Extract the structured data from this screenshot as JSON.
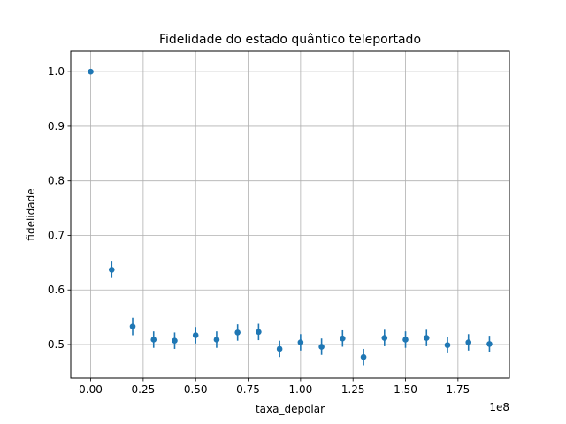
{
  "chart_data": {
    "type": "scatter",
    "title": "Fidelidade do estado quântico teleportado",
    "xlabel": "taxa_depolar",
    "ylabel": "fidelidade",
    "x_offset_label": "1e8",
    "xlim": [
      -0.095,
      1.995
    ],
    "ylim": [
      0.4385,
      1.0375
    ],
    "grid": true,
    "marker_color": "#1f77b4",
    "x_ticks": [
      0.0,
      0.25,
      0.5,
      0.75,
      1.0,
      1.25,
      1.5,
      1.75
    ],
    "x_tick_labels": [
      "0.00",
      "0.25",
      "0.50",
      "0.75",
      "1.00",
      "1.25",
      "1.50",
      "1.75"
    ],
    "y_ticks": [
      0.5,
      0.6,
      0.7,
      0.8,
      0.9,
      1.0
    ],
    "y_tick_labels": [
      "0.5",
      "0.6",
      "0.7",
      "0.8",
      "0.9",
      "1.0"
    ],
    "points": [
      {
        "x": 0.0,
        "y": 1.0,
        "err": 0.002
      },
      {
        "x": 0.1,
        "y": 0.637,
        "err": 0.015
      },
      {
        "x": 0.2,
        "y": 0.533,
        "err": 0.016
      },
      {
        "x": 0.3,
        "y": 0.509,
        "err": 0.015
      },
      {
        "x": 0.4,
        "y": 0.507,
        "err": 0.015
      },
      {
        "x": 0.5,
        "y": 0.517,
        "err": 0.015
      },
      {
        "x": 0.6,
        "y": 0.509,
        "err": 0.015
      },
      {
        "x": 0.7,
        "y": 0.522,
        "err": 0.015
      },
      {
        "x": 0.8,
        "y": 0.523,
        "err": 0.015
      },
      {
        "x": 0.9,
        "y": 0.492,
        "err": 0.015
      },
      {
        "x": 1.0,
        "y": 0.504,
        "err": 0.015
      },
      {
        "x": 1.1,
        "y": 0.496,
        "err": 0.015
      },
      {
        "x": 1.2,
        "y": 0.511,
        "err": 0.015
      },
      {
        "x": 1.3,
        "y": 0.477,
        "err": 0.015
      },
      {
        "x": 1.4,
        "y": 0.512,
        "err": 0.015
      },
      {
        "x": 1.5,
        "y": 0.509,
        "err": 0.015
      },
      {
        "x": 1.6,
        "y": 0.512,
        "err": 0.015
      },
      {
        "x": 1.7,
        "y": 0.499,
        "err": 0.015
      },
      {
        "x": 1.8,
        "y": 0.504,
        "err": 0.015
      },
      {
        "x": 1.9,
        "y": 0.501,
        "err": 0.015
      }
    ]
  }
}
